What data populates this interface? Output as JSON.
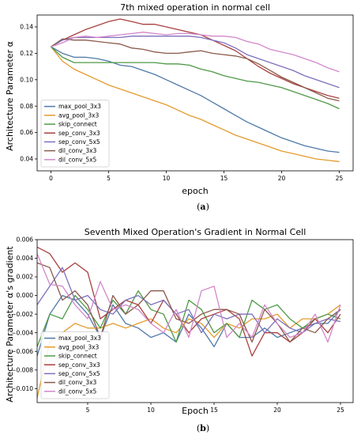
{
  "chart_data": [
    {
      "type": "line",
      "title": "7th mixed operation in normal cell",
      "xlabel": "epoch",
      "ylabel": "Architecture Parameter α",
      "caption": [
        "(",
        "a",
        ")"
      ],
      "xlim": [
        -1.2,
        26.2
      ],
      "ylim": [
        0.031,
        0.149
      ],
      "xticks": [
        0,
        5,
        10,
        15,
        20,
        25
      ],
      "yticks": [
        0.04,
        0.06,
        0.08,
        0.1,
        0.12,
        0.14
      ],
      "ytick_labels": [
        "0.04",
        "0.06",
        "0.08",
        "0.10",
        "0.12",
        "0.14"
      ],
      "legend_position": "bottom-left",
      "x": [
        0,
        1,
        2,
        3,
        4,
        5,
        6,
        7,
        8,
        9,
        10,
        11,
        12,
        13,
        14,
        15,
        16,
        17,
        18,
        19,
        20,
        21,
        22,
        23,
        24,
        25
      ],
      "series": [
        {
          "name": "max_pool_3x3",
          "color": "#4f79a8",
          "values": [
            0.125,
            0.12,
            0.117,
            0.117,
            0.116,
            0.114,
            0.111,
            0.11,
            0.107,
            0.104,
            0.1,
            0.096,
            0.092,
            0.088,
            0.083,
            0.078,
            0.073,
            0.068,
            0.064,
            0.06,
            0.056,
            0.053,
            0.05,
            0.048,
            0.046,
            0.045
          ]
        },
        {
          "name": "avg_pool_3x3",
          "color": "#e39b2c",
          "values": [
            0.125,
            0.114,
            0.108,
            0.104,
            0.1,
            0.096,
            0.093,
            0.09,
            0.087,
            0.084,
            0.081,
            0.077,
            0.073,
            0.07,
            0.066,
            0.062,
            0.058,
            0.055,
            0.052,
            0.049,
            0.046,
            0.044,
            0.042,
            0.04,
            0.039,
            0.038
          ]
        },
        {
          "name": "skip_connect",
          "color": "#4f9a46",
          "values": [
            0.125,
            0.117,
            0.113,
            0.113,
            0.113,
            0.113,
            0.113,
            0.113,
            0.113,
            0.113,
            0.112,
            0.112,
            0.111,
            0.108,
            0.106,
            0.103,
            0.101,
            0.099,
            0.098,
            0.096,
            0.094,
            0.091,
            0.088,
            0.085,
            0.082,
            0.078
          ]
        },
        {
          "name": "sep_conv_3x3",
          "color": "#a9413f",
          "values": [
            0.125,
            0.13,
            0.134,
            0.138,
            0.141,
            0.144,
            0.146,
            0.144,
            0.142,
            0.142,
            0.14,
            0.138,
            0.136,
            0.134,
            0.13,
            0.126,
            0.122,
            0.116,
            0.11,
            0.105,
            0.101,
            0.097,
            0.094,
            0.091,
            0.088,
            0.086
          ]
        },
        {
          "name": "sep_conv_5x5",
          "color": "#7e6fbe",
          "values": [
            0.125,
            0.13,
            0.132,
            0.132,
            0.132,
            0.132,
            0.132,
            0.133,
            0.133,
            0.133,
            0.133,
            0.133,
            0.133,
            0.132,
            0.13,
            0.128,
            0.124,
            0.119,
            0.116,
            0.113,
            0.11,
            0.107,
            0.103,
            0.1,
            0.097,
            0.094
          ]
        },
        {
          "name": "dil_conv_3x3",
          "color": "#8a5a4a",
          "values": [
            0.125,
            0.131,
            0.13,
            0.13,
            0.129,
            0.128,
            0.127,
            0.124,
            0.123,
            0.121,
            0.12,
            0.12,
            0.121,
            0.122,
            0.12,
            0.119,
            0.118,
            0.116,
            0.112,
            0.107,
            0.102,
            0.098,
            0.094,
            0.09,
            0.086,
            0.084
          ]
        },
        {
          "name": "dil_conv_5x5",
          "color": "#d287cb",
          "values": [
            0.125,
            0.128,
            0.132,
            0.133,
            0.132,
            0.133,
            0.134,
            0.135,
            0.136,
            0.135,
            0.134,
            0.135,
            0.135,
            0.134,
            0.133,
            0.133,
            0.132,
            0.129,
            0.127,
            0.123,
            0.121,
            0.119,
            0.116,
            0.113,
            0.109,
            0.106
          ]
        }
      ]
    },
    {
      "type": "line",
      "title": "Seventh Mixed Operation's Gradient in Normal Cell",
      "xlabel": "Epoch",
      "ylabel": "Architecture Parameter α's gradient",
      "caption": [
        "(",
        "b",
        ")"
      ],
      "xlim": [
        1,
        26
      ],
      "ylim": [
        -0.0115,
        0.006
      ],
      "xticks": [
        5,
        10,
        15,
        20,
        25
      ],
      "yticks": [
        0.006,
        0.004,
        0.002,
        0.0,
        -0.002,
        -0.004,
        -0.006,
        -0.008,
        -0.01
      ],
      "ytick_labels": [
        "0.006",
        "0.004",
        "0.002",
        "0.000",
        "−0.002",
        "−0.004",
        "−0.006",
        "−0.008",
        "−0.010"
      ],
      "legend_position": "bottom-left",
      "x": [
        1,
        2,
        3,
        4,
        5,
        6,
        7,
        8,
        9,
        10,
        11,
        12,
        13,
        14,
        15,
        16,
        17,
        18,
        19,
        20,
        21,
        22,
        23,
        24,
        25
      ],
      "series": [
        {
          "name": "max_pool_3x3",
          "color": "#4f79a8",
          "values": [
            -0.0065,
            -0.002,
            0.0,
            -0.0005,
            -0.002,
            -0.0045,
            -0.001,
            -0.003,
            -0.0035,
            -0.0045,
            -0.004,
            -0.005,
            -0.002,
            -0.0035,
            -0.0055,
            -0.003,
            -0.0045,
            -0.0045,
            -0.0035,
            -0.0045,
            -0.004,
            -0.0035,
            -0.003,
            -0.003,
            -0.0015
          ]
        },
        {
          "name": "avg_pool_3x3",
          "color": "#e39b2c",
          "values": [
            -0.011,
            -0.005,
            -0.004,
            -0.003,
            -0.0035,
            -0.0035,
            -0.003,
            -0.0035,
            -0.003,
            -0.0025,
            -0.0035,
            -0.004,
            -0.0025,
            -0.003,
            -0.0045,
            -0.003,
            -0.0035,
            -0.0025,
            -0.0025,
            -0.002,
            -0.0035,
            -0.0025,
            -0.0025,
            -0.002,
            -0.001
          ]
        },
        {
          "name": "skip_connect",
          "color": "#4f9a46",
          "values": [
            -0.0055,
            -0.002,
            -0.0025,
            0.0,
            -0.0015,
            -0.0035,
            -0.0005,
            -0.002,
            0.0005,
            -0.0015,
            -0.002,
            -0.005,
            -0.0005,
            -0.0015,
            -0.004,
            -0.003,
            -0.0045,
            -0.0005,
            -0.0015,
            -0.001,
            -0.0025,
            -0.0035,
            -0.0025,
            -0.002,
            -0.0025
          ]
        },
        {
          "name": "sep_conv_3x3",
          "color": "#a9413f",
          "values": [
            0.0052,
            0.0045,
            0.0025,
            0.0035,
            0.0025,
            -0.0025,
            -0.0015,
            -0.0005,
            -0.001,
            -0.003,
            -0.0005,
            -0.002,
            -0.004,
            -0.0025,
            -0.002,
            -0.0015,
            -0.0025,
            -0.0065,
            -0.004,
            -0.004,
            -0.005,
            -0.004,
            -0.0025,
            -0.004,
            -0.002
          ]
        },
        {
          "name": "sep_conv_5x5",
          "color": "#7e6fbe",
          "values": [
            -0.001,
            0.001,
            0.003,
            -0.0005,
            0.0,
            -0.0015,
            -0.002,
            -0.0005,
            0.0,
            -0.001,
            -0.0005,
            -0.002,
            -0.0015,
            -0.004,
            -0.002,
            -0.0025,
            -0.002,
            -0.002,
            -0.004,
            -0.0025,
            -0.0035,
            -0.004,
            -0.003,
            -0.0025,
            -0.0028
          ]
        },
        {
          "name": "dil_conv_3x3",
          "color": "#8a5a4a",
          "values": [
            0.0035,
            0.003,
            -0.0005,
            0.0005,
            -0.001,
            -0.0045,
            0.0,
            -0.002,
            -0.001,
            0.0005,
            0.0005,
            -0.0025,
            -0.003,
            -0.002,
            -0.0015,
            -0.0015,
            -0.002,
            -0.005,
            -0.0015,
            -0.003,
            -0.005,
            -0.0035,
            -0.004,
            -0.0025,
            -0.0015
          ]
        },
        {
          "name": "dil_conv_5x5",
          "color": "#d287cb",
          "values": [
            0.0045,
            0.0012,
            0.001,
            -0.001,
            -0.0025,
            0.0015,
            -0.0015,
            -0.001,
            -0.0015,
            -0.003,
            -0.004,
            -0.0015,
            -0.0045,
            0.0005,
            0.001,
            -0.0045,
            -0.003,
            -0.0045,
            -0.001,
            -0.003,
            -0.0045,
            -0.004,
            -0.002,
            -0.005,
            -0.001
          ]
        }
      ]
    }
  ]
}
